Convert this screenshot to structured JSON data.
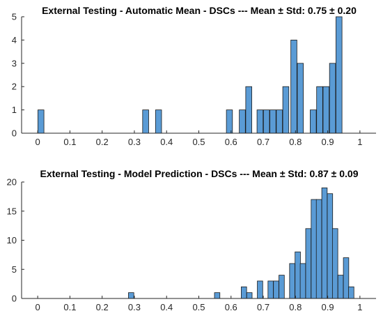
{
  "chart_data": [
    {
      "type": "bar",
      "title": "External Testing - Automatic Mean - DSCs --- Mean ± Std: 0.75 ± 0.20",
      "xlim": [
        -0.05,
        1.05
      ],
      "ylim": [
        0,
        5
      ],
      "bin_width": 0.01875,
      "x_ticks": [
        "0",
        "0.1",
        "0.2",
        "0.3",
        "0.4",
        "0.5",
        "0.6",
        "0.7",
        "0.8",
        "0.9",
        "1"
      ],
      "y_ticks": [
        "0",
        "1",
        "2",
        "3",
        "4",
        "5"
      ],
      "bins": [
        {
          "x": 0.01,
          "count": 1
        },
        {
          "x": 0.335,
          "count": 1
        },
        {
          "x": 0.375,
          "count": 1
        },
        {
          "x": 0.595,
          "count": 1
        },
        {
          "x": 0.635,
          "count": 1
        },
        {
          "x": 0.655,
          "count": 2
        },
        {
          "x": 0.69,
          "count": 1
        },
        {
          "x": 0.71,
          "count": 1
        },
        {
          "x": 0.73,
          "count": 1
        },
        {
          "x": 0.75,
          "count": 1
        },
        {
          "x": 0.77,
          "count": 2
        },
        {
          "x": 0.795,
          "count": 4
        },
        {
          "x": 0.815,
          "count": 3
        },
        {
          "x": 0.855,
          "count": 1
        },
        {
          "x": 0.875,
          "count": 2
        },
        {
          "x": 0.895,
          "count": 2
        },
        {
          "x": 0.915,
          "count": 3
        },
        {
          "x": 0.935,
          "count": 5
        }
      ]
    },
    {
      "type": "bar",
      "title": "External Testing - Model Prediction - DSCs --- Mean ± Std: 0.87 ± 0.09",
      "xlim": [
        -0.05,
        1.05
      ],
      "ylim": [
        0,
        20
      ],
      "bin_width": 0.0167,
      "x_ticks": [
        "0",
        "0.1",
        "0.2",
        "0.3",
        "0.4",
        "0.5",
        "0.6",
        "0.7",
        "0.8",
        "0.9",
        "1"
      ],
      "y_ticks": [
        "0",
        "5",
        "10",
        "15",
        "20"
      ],
      "bins": [
        {
          "x": 0.29,
          "count": 1
        },
        {
          "x": 0.557,
          "count": 1
        },
        {
          "x": 0.64,
          "count": 2
        },
        {
          "x": 0.657,
          "count": 1
        },
        {
          "x": 0.69,
          "count": 3
        },
        {
          "x": 0.723,
          "count": 3
        },
        {
          "x": 0.74,
          "count": 3
        },
        {
          "x": 0.757,
          "count": 4
        },
        {
          "x": 0.79,
          "count": 6
        },
        {
          "x": 0.807,
          "count": 8
        },
        {
          "x": 0.823,
          "count": 6
        },
        {
          "x": 0.84,
          "count": 12
        },
        {
          "x": 0.857,
          "count": 17
        },
        {
          "x": 0.873,
          "count": 17
        },
        {
          "x": 0.89,
          "count": 19
        },
        {
          "x": 0.907,
          "count": 18
        },
        {
          "x": 0.923,
          "count": 12
        },
        {
          "x": 0.94,
          "count": 4
        },
        {
          "x": 0.957,
          "count": 7
        },
        {
          "x": 0.973,
          "count": 2
        }
      ]
    }
  ],
  "colors": {
    "bar_fill": "#5a9bd5",
    "bar_edge": "#1a1a1a",
    "axis": "#262626"
  }
}
